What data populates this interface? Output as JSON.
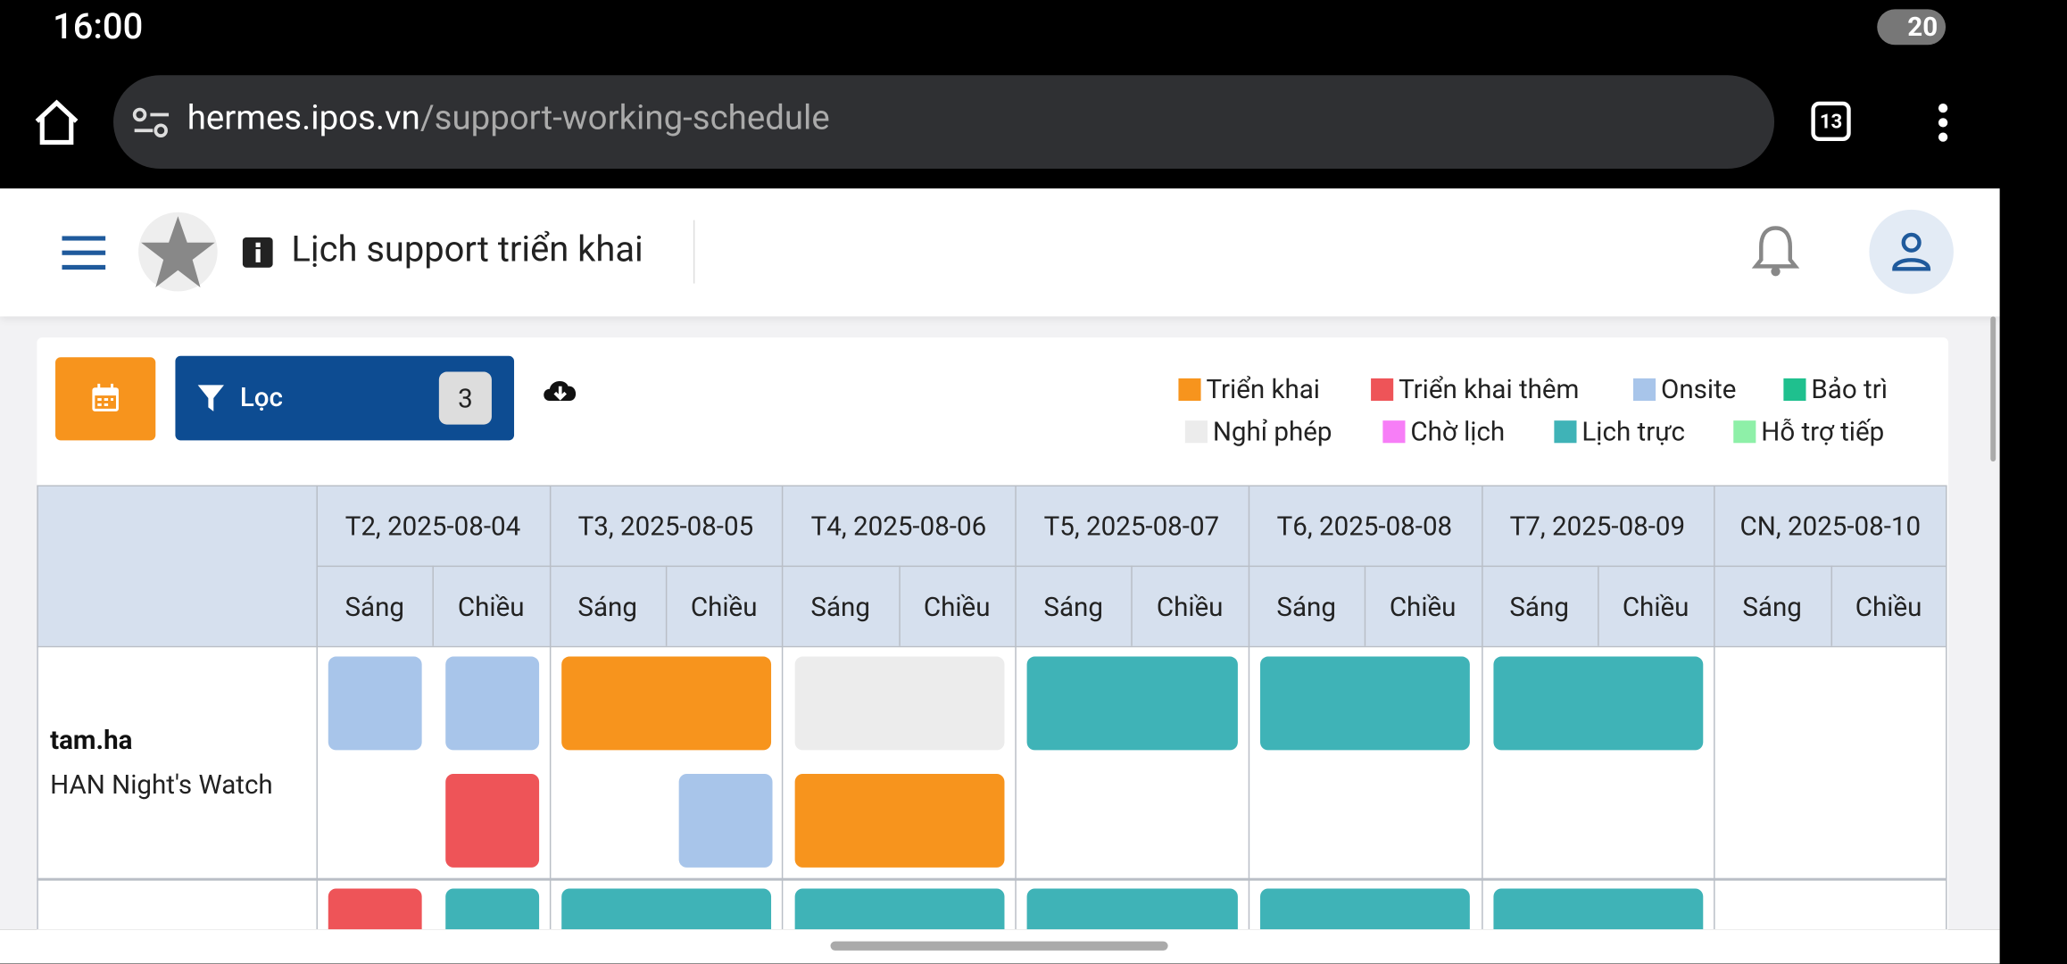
{
  "status": {
    "time": "16:00",
    "battery": "20"
  },
  "browser": {
    "url_host": "hermes.ipos.vn",
    "url_path": "/support-working-schedule",
    "tab_count": "13"
  },
  "header": {
    "title": "Lịch support triển khai"
  },
  "toolbar": {
    "filter_label": "Lọc",
    "filter_count": "3"
  },
  "legend": [
    {
      "label": "Triển khai",
      "color": "#f7941d"
    },
    {
      "label": "Triển khai thêm",
      "color": "#ee5458"
    },
    {
      "label": "Onsite",
      "color": "#a8c5ea"
    },
    {
      "label": "Bảo trì",
      "color": "#1fc08e"
    },
    {
      "label": "Nghỉ phép",
      "color": "#ececec"
    },
    {
      "label": "Chờ lịch",
      "color": "#f77ef7"
    },
    {
      "label": "Lịch trực",
      "color": "#3fb3b7"
    },
    {
      "label": "Hỗ trợ tiếp",
      "color": "#8ef0a8"
    }
  ],
  "table": {
    "days": [
      {
        "label": "T2, 2025-08-04",
        "sessions": [
          "Sáng",
          "Chiều"
        ]
      },
      {
        "label": "T3, 2025-08-05",
        "sessions": [
          "Sáng",
          "Chiều"
        ]
      },
      {
        "label": "T4, 2025-08-06",
        "sessions": [
          "Sáng",
          "Chiều"
        ]
      },
      {
        "label": "T5, 2025-08-07",
        "sessions": [
          "Sáng",
          "Chiều"
        ]
      },
      {
        "label": "T6, 2025-08-08",
        "sessions": [
          "Sáng",
          "Chiều"
        ]
      },
      {
        "label": "T7, 2025-08-09",
        "sessions": [
          "Sáng",
          "Chiều"
        ]
      },
      {
        "label": "CN, 2025-08-10",
        "sessions": [
          "Sáng",
          "Chiều"
        ]
      }
    ],
    "rows": [
      {
        "name": "tam.ha",
        "team": "HAN Night's Watch"
      }
    ]
  }
}
